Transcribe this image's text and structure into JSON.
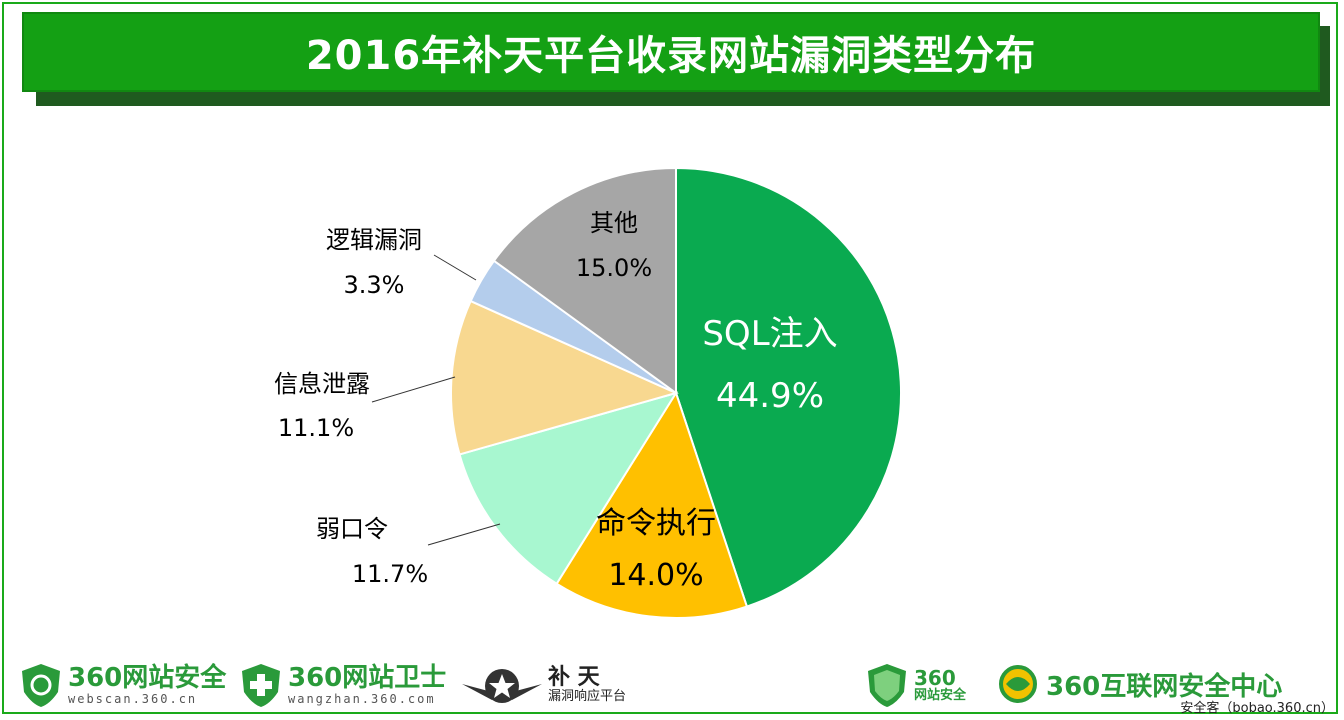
{
  "header": {
    "title": "2016年补天平台收录网站漏洞类型分布"
  },
  "chart_data": {
    "type": "pie",
    "title": "2016年补天平台收录网站漏洞类型分布",
    "slices": [
      {
        "label": "SQL注入",
        "value": 44.9,
        "value_label": "44.9%",
        "color": "#0aaa50",
        "text_color": "#ffffff",
        "label_inside": true
      },
      {
        "label": "命令执行",
        "value": 14.0,
        "value_label": "14.0%",
        "color": "#ffc000",
        "text_color": "#000000",
        "label_inside": true
      },
      {
        "label": "弱口令",
        "value": 11.7,
        "value_label": "11.7%",
        "color": "#a8f7d0",
        "text_color": "#000000",
        "label_inside": false
      },
      {
        "label": "信息泄露",
        "value": 11.1,
        "value_label": "11.1%",
        "color": "#f8d890",
        "text_color": "#000000",
        "label_inside": false
      },
      {
        "label": "逻辑漏洞",
        "value": 3.3,
        "value_label": "3.3%",
        "color": "#b4cdec",
        "text_color": "#000000",
        "label_inside": false
      },
      {
        "label": "其他",
        "value": 15.0,
        "value_label": "15.0%",
        "color": "#a6a6a6",
        "text_color": "#000000",
        "label_inside": true
      }
    ],
    "start": "12 o'clock",
    "direction": "clockwise",
    "legend": "none"
  },
  "footer": {
    "logos": [
      {
        "name": "360网站安全",
        "sub": "webscan.360.cn",
        "icon": "green-shield-icon"
      },
      {
        "name": "360网站卫士",
        "sub": "wangzhan.360.com",
        "icon": "green-cross-shield-icon"
      },
      {
        "name": "补 天",
        "sub": "漏洞响应平台",
        "icon": "star-wings-icon"
      },
      {
        "name": "360",
        "sub": "网站安全",
        "icon": "green-shield-icon"
      },
      {
        "name": "360互联网安全中心",
        "icon": "green-globe-icon"
      }
    ],
    "credit": "安全客（bobao.360.cn）"
  }
}
